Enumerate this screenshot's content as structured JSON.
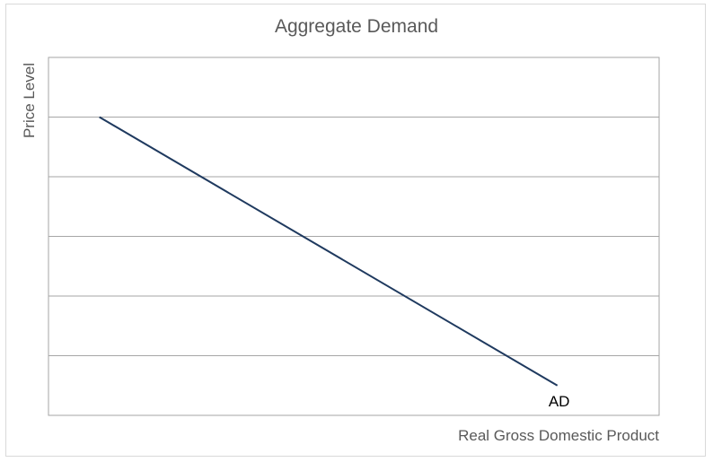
{
  "chart_data": {
    "type": "line",
    "title": "Aggregate Demand",
    "xlabel": "Real Gross Domestic Product",
    "ylabel": "Price Level",
    "xlim": [
      0,
      6
    ],
    "ylim": [
      0,
      6
    ],
    "grid": true,
    "series": [
      {
        "name": "AD",
        "color": "#1f3a5f",
        "points": [
          {
            "x": 0.5,
            "y": 5
          },
          {
            "x": 5.0,
            "y": 0.5
          }
        ]
      }
    ]
  }
}
